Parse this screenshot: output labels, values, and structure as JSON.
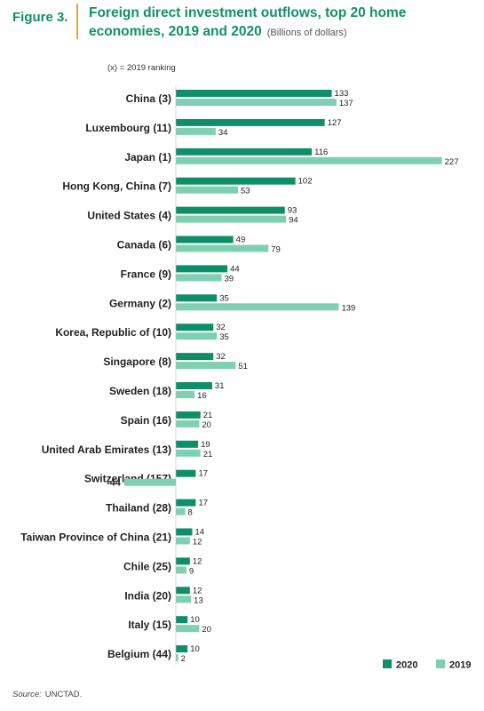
{
  "figure": {
    "label": "Figure 3.",
    "title": "Foreign direct investment outflows, top 20 home economies, 2019 and 2020",
    "subtitle": "(Billions of dollars)",
    "note": "(x) = 2019 ranking",
    "source_label": "Source:",
    "source_value": "UNCTAD."
  },
  "colors": {
    "y2020": "#0f8f68",
    "y2019": "#7fcfb2",
    "title": "#12906a",
    "accent": "#e3a82b"
  },
  "chart_data": {
    "type": "bar",
    "orientation": "horizontal",
    "categories": [
      "China (3)",
      "Luxembourg (11)",
      "Japan (1)",
      "Hong Kong, China (7)",
      "United States (4)",
      "Canada (6)",
      "France (9)",
      "Germany (2)",
      "Korea, Republic of (10)",
      "Singapore (8)",
      "Sweden (18)",
      "Spain (16)",
      "United Arab Emirates (13)",
      "Switzerland (157)",
      "Thailand (28)",
      "Taiwan Province of China (21)",
      "Chile (25)",
      "India (20)",
      "Italy (15)",
      "Belgium (44)"
    ],
    "series": [
      {
        "name": "2020",
        "values": [
          133,
          127,
          116,
          102,
          93,
          49,
          44,
          35,
          32,
          32,
          31,
          21,
          19,
          17,
          17,
          14,
          12,
          12,
          10,
          10
        ]
      },
      {
        "name": "2019",
        "values": [
          137,
          34,
          227,
          53,
          94,
          79,
          39,
          139,
          35,
          51,
          16,
          20,
          21,
          -44,
          8,
          12,
          9,
          13,
          20,
          2
        ]
      }
    ],
    "legend": {
      "position": "bottom-right"
    },
    "grid": false
  }
}
